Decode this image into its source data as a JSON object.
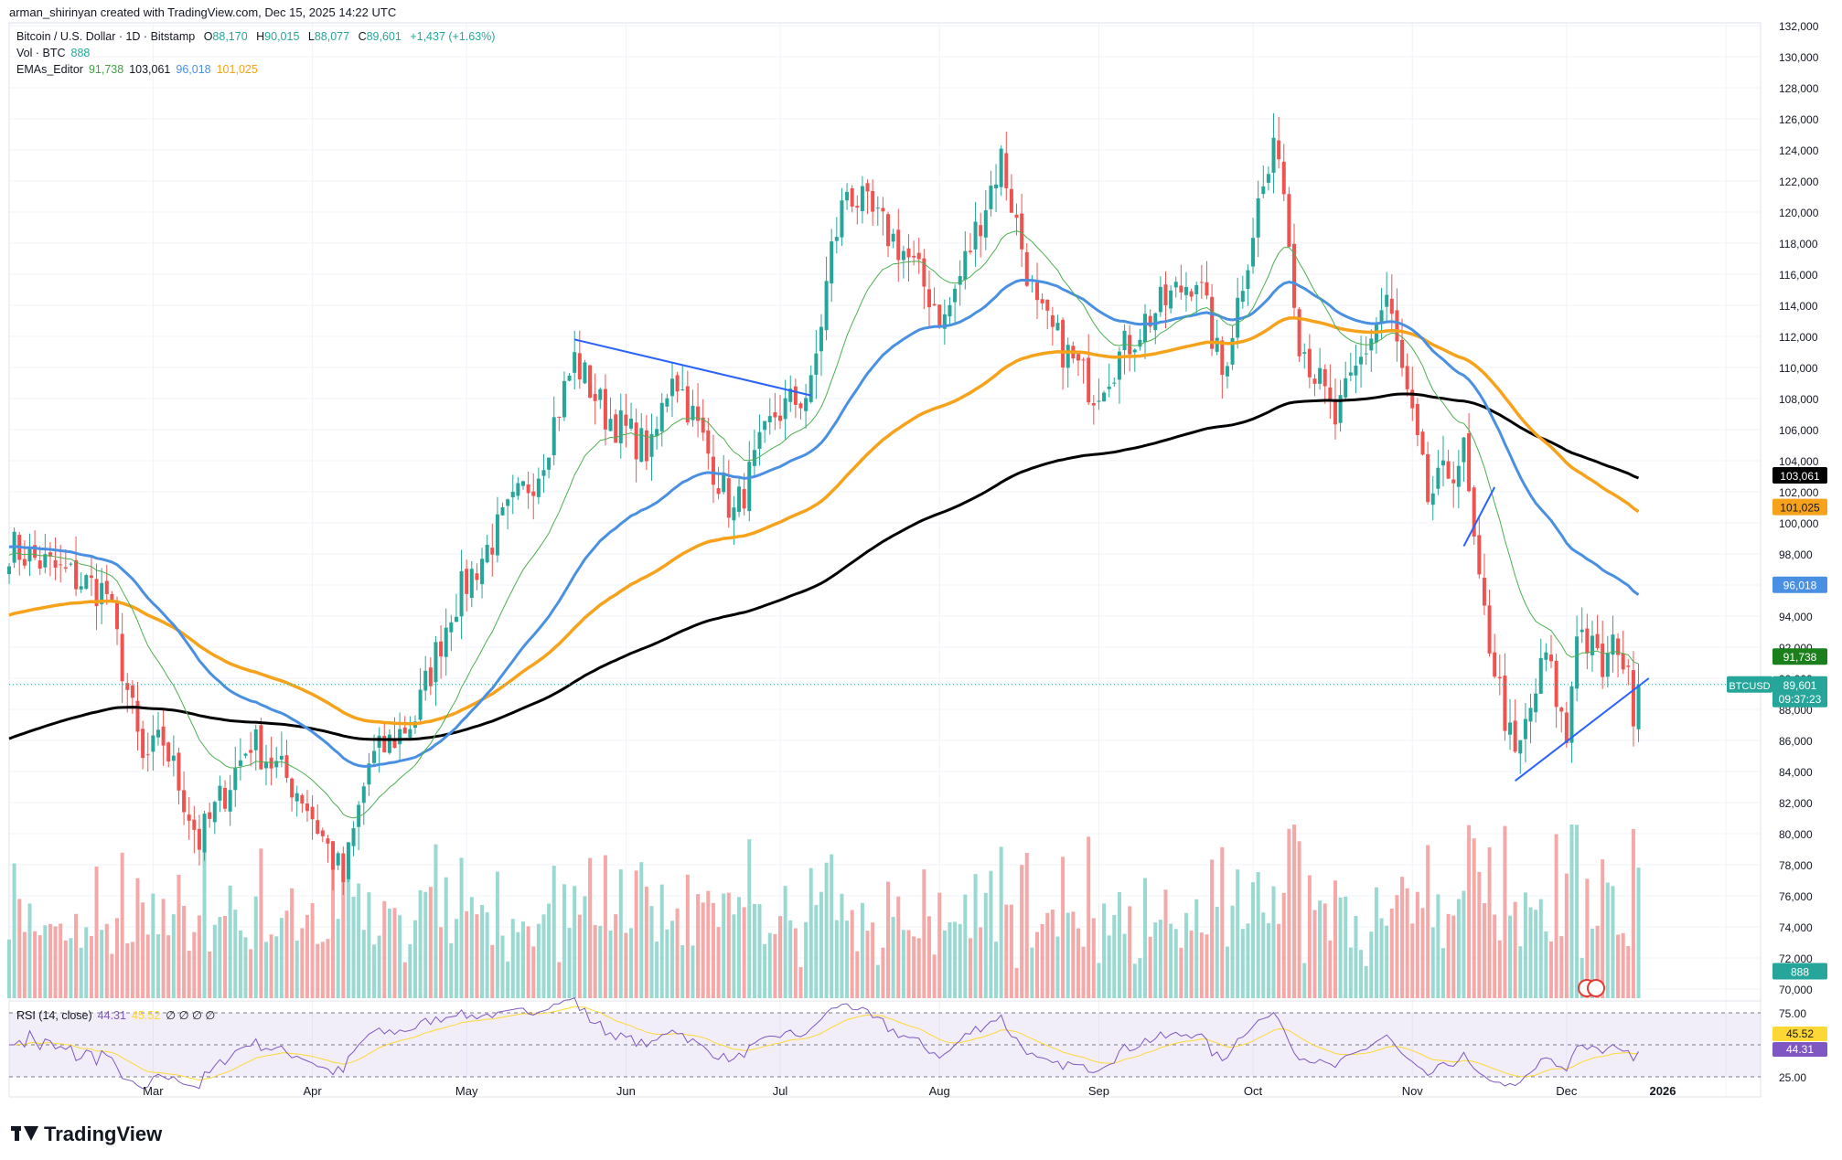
{
  "header": {
    "created_by": "arman_shirinyan created with TradingView.com, Dec 15, 2025 14:22 UTC"
  },
  "legend": {
    "symbol": "Bitcoin / U.S. Dollar · 1D · Bitstamp",
    "o_label": "O",
    "o_value": "88,170",
    "h_label": "H",
    "h_value": "90,015",
    "l_label": "L",
    "l_value": "88,077",
    "c_label": "C",
    "c_value": "89,601",
    "change": "+1,437 (+1.63%)",
    "vol_label": "Vol · BTC",
    "vol_value": "888",
    "ema_label": "EMAs_Editor",
    "ema20": "91,738",
    "ema200": "103,061",
    "ema50": "96,018",
    "ema100": "101,025",
    "rsi_label": "RSI (14, close)",
    "rsi_value": "44.31",
    "rsi_ma": "45.52",
    "rsi_extra": "∅ ∅ ∅ ∅"
  },
  "price_axis": {
    "labels": [
      "132,000",
      "130,000",
      "128,000",
      "126,000",
      "124,000",
      "122,000",
      "120,000",
      "118,000",
      "116,000",
      "114,000",
      "112,000",
      "110,000",
      "108,000",
      "106,000",
      "104,000",
      "102,000",
      "100,000",
      "98,000",
      "96,000",
      "94,000",
      "92,000",
      "90,000",
      "88,000",
      "86,000",
      "84,000",
      "82,000",
      "80,000",
      "78,000",
      "76,000",
      "74,000",
      "72,000",
      "70,000"
    ]
  },
  "badges": {
    "ema200": "103,061",
    "ema100": "101,025",
    "ema50": "96,018",
    "ema20": "91,738",
    "ticker": "BTCUSD",
    "price": "89,601",
    "countdown": "09:37:23",
    "volume": "888",
    "rsi_ma": "45.52",
    "rsi": "44.31"
  },
  "rsi_axis": {
    "labels": [
      "75.00",
      "25.00"
    ]
  },
  "time_axis": {
    "labels": [
      "Mar",
      "Apr",
      "May",
      "Jun",
      "Jul",
      "Aug",
      "Sep",
      "Oct",
      "Nov",
      "Dec",
      "2026"
    ]
  },
  "footer": {
    "brand": "TradingView"
  },
  "colors": {
    "up": "#26a69a",
    "down": "#ef5350",
    "ema20": "#4caf50",
    "ema50": "#4a90e2",
    "ema100": "#f7a21b",
    "ema200": "#000000",
    "trend": "#2962ff",
    "rsi": "#7e57c2",
    "rsi_ma": "#fdd835"
  },
  "chart_data": {
    "type": "candlestick",
    "title": "Bitcoin / U.S. Dollar · 1D · Bitstamp",
    "ylim": [
      70000,
      132000
    ],
    "x_start": "2025-02-01",
    "x_end": "2025-12-15",
    "close_anchors": [
      [
        "2025-02-01",
        98500
      ],
      [
        "2025-02-10",
        97000
      ],
      [
        "2025-02-20",
        95500
      ],
      [
        "2025-02-27",
        84500
      ],
      [
        "2025-03-03",
        86000
      ],
      [
        "2025-03-10",
        79500
      ],
      [
        "2025-03-20",
        86000
      ],
      [
        "2025-03-30",
        82500
      ],
      [
        "2025-04-07",
        77000
      ],
      [
        "2025-04-12",
        84500
      ],
      [
        "2025-04-21",
        87500
      ],
      [
        "2025-04-28",
        94500
      ],
      [
        "2025-05-08",
        100000
      ],
      [
        "2025-05-15",
        103500
      ],
      [
        "2025-05-22",
        110500
      ],
      [
        "2025-05-28",
        107000
      ],
      [
        "2025-06-06",
        104500
      ],
      [
        "2025-06-10",
        110000
      ],
      [
        "2025-06-22",
        100500
      ],
      [
        "2025-06-30",
        107000
      ],
      [
        "2025-07-07",
        108500
      ],
      [
        "2025-07-11",
        117500
      ],
      [
        "2025-07-14",
        121500
      ],
      [
        "2025-07-25",
        117500
      ],
      [
        "2025-08-02",
        113000
      ],
      [
        "2025-08-13",
        123500
      ],
      [
        "2025-08-20",
        113500
      ],
      [
        "2025-08-31",
        108500
      ],
      [
        "2025-09-10",
        113000
      ],
      [
        "2025-09-20",
        116000
      ],
      [
        "2025-09-25",
        109500
      ],
      [
        "2025-10-02",
        120500
      ],
      [
        "2025-10-06",
        124500
      ],
      [
        "2025-10-10",
        112000
      ],
      [
        "2025-10-17",
        106500
      ],
      [
        "2025-10-27",
        114500
      ],
      [
        "2025-11-04",
        101500
      ],
      [
        "2025-11-11",
        104500
      ],
      [
        "2025-11-14",
        95500
      ],
      [
        "2025-11-21",
        84500
      ],
      [
        "2025-11-27",
        91500
      ],
      [
        "2025-12-01",
        86000
      ],
      [
        "2025-12-03",
        93500
      ],
      [
        "2025-12-08",
        90500
      ],
      [
        "2025-12-11",
        92500
      ],
      [
        "2025-12-14",
        88200
      ],
      [
        "2025-12-15",
        89601
      ]
    ],
    "ema20_last": 91738,
    "ema50_last": 96018,
    "ema100_last": 101025,
    "ema200_last": 103061,
    "rsi_last": 44.31,
    "rsi_ma_last": 45.52,
    "trendlines": [
      {
        "from": [
          "2025-05-22",
          111800
        ],
        "to": [
          "2025-07-07",
          108200
        ]
      },
      {
        "from": [
          "2025-11-11",
          98500
        ],
        "to": [
          "2025-11-17",
          102300
        ]
      },
      {
        "from": [
          "2025-11-21",
          83400
        ],
        "to": [
          "2025-12-17",
          90000
        ]
      }
    ]
  }
}
